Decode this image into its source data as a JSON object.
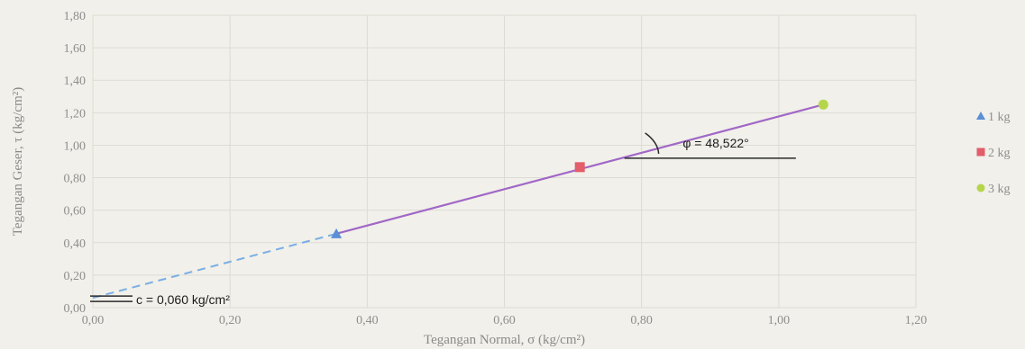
{
  "chart_data": {
    "type": "scatter",
    "xlabel": "Tegangan Normal, σ (kg/cm²)",
    "ylabel": "Tegangan Geser, τ (kg/cm²)",
    "xlim": [
      0,
      1.2
    ],
    "ylim": [
      0,
      1.8
    ],
    "x_ticks": [
      "0,00",
      "0,20",
      "0,40",
      "0,60",
      "0,80",
      "1,00",
      "1,20"
    ],
    "y_ticks": [
      "0,00",
      "0,20",
      "0,40",
      "0,60",
      "0,80",
      "1,00",
      "1,20",
      "1,40",
      "1,60",
      "1,80"
    ],
    "grid": true,
    "legend_position": "right",
    "series": [
      {
        "name": "1 kg",
        "marker": "triangle",
        "color": "#5b8fd6",
        "x": [
          0.355
        ],
        "y": [
          0.455
        ]
      },
      {
        "name": "2 kg",
        "marker": "square",
        "color": "#e35d6a",
        "x": [
          0.71
        ],
        "y": [
          0.865
        ]
      },
      {
        "name": "3 kg",
        "marker": "circle",
        "color": "#b5d64a",
        "x": [
          1.065
        ],
        "y": [
          1.25
        ]
      }
    ],
    "fit_line": {
      "color": "#a067c7",
      "dashed_color": "#7aaee6",
      "points": [
        [
          0.0,
          0.06
        ],
        [
          0.355,
          0.455
        ],
        [
          1.065,
          1.25
        ]
      ]
    },
    "annotations": {
      "cohesion": "c = 0,060 kg/cm²",
      "friction_angle": "φ = 48,522°"
    }
  }
}
